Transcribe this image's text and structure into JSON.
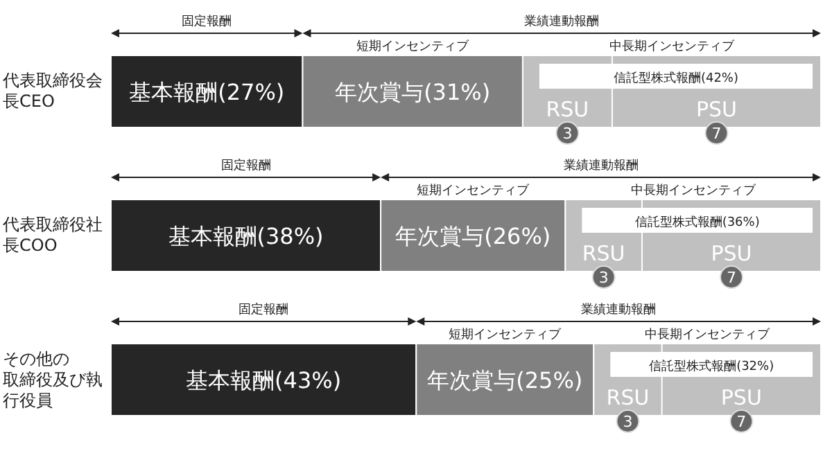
{
  "chart_data": {
    "type": "bar",
    "orientation": "horizontal",
    "stacked": true,
    "categories": [
      "代表取締役会長CEO",
      "代表取締役社長COO",
      "その他の取締役及び執行役員"
    ],
    "series": [
      {
        "color": "#262626",
        "values": [
          27,
          38,
          43
        ],
        "value_labels": [
          "基本報酬(27%)",
          "基本報酬(38%)",
          "基本報酬(43%)"
        ]
      },
      {
        "color": "#808080",
        "values": [
          31,
          26,
          25
        ],
        "value_labels": [
          "年次賞与(31%)",
          "年次賞与(26%)",
          "年次賞与(25%)"
        ]
      },
      {
        "color": "#c0c0c0",
        "values": [
          42,
          36,
          32
        ],
        "value_labels": [
          "信託型株式報酬(42%)",
          "信託型株式報酬(36%)",
          "信託型株式報酬(32%)"
        ]
      }
    ],
    "annotations": [
      "固定報酬",
      "業績連動報酬",
      "短期インセンティブ",
      "中長期インセンティブ",
      "RSU",
      "PSU",
      "3",
      "7"
    ],
    "legend": false
  }
}
